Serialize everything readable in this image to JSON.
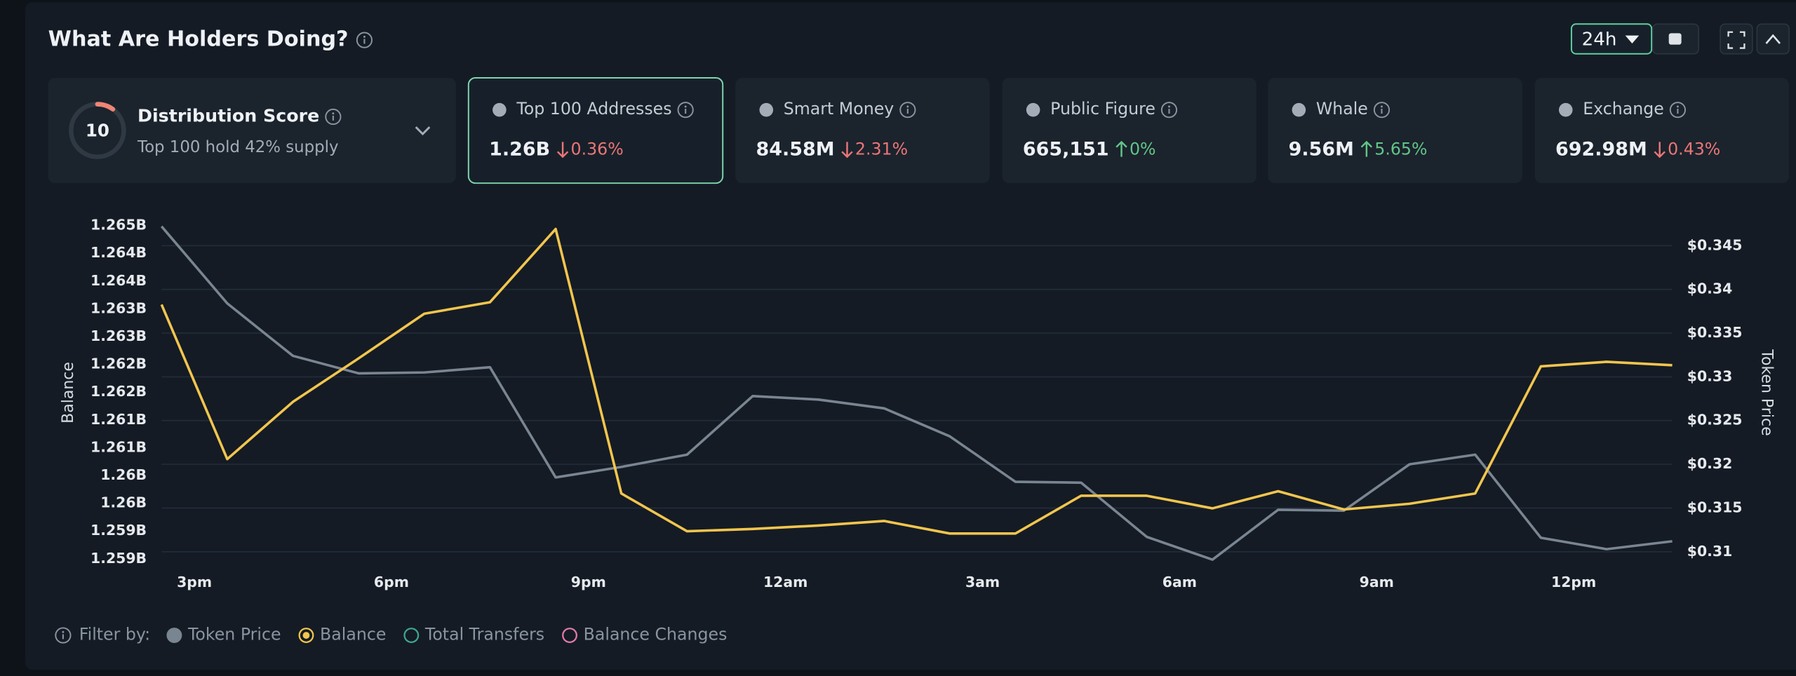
{
  "header": {
    "title": "What Are Holders Doing?",
    "range": "24h"
  },
  "distribution": {
    "score": 10,
    "title": "Distribution Score",
    "subtitle": "Top 100 hold 42% supply"
  },
  "cards": [
    {
      "name": "Top 100 Addresses",
      "value": "1.26B",
      "change": "0.36%",
      "direction": "down",
      "selected": true
    },
    {
      "name": "Smart Money",
      "value": "84.58M",
      "change": "2.31%",
      "direction": "down",
      "selected": false
    },
    {
      "name": "Public Figure",
      "value": "665,151",
      "change": "0%",
      "direction": "up",
      "selected": false
    },
    {
      "name": "Whale",
      "value": "9.56M",
      "change": "5.65%",
      "direction": "up",
      "selected": false
    },
    {
      "name": "Exchange",
      "value": "692.98M",
      "change": "0.43%",
      "direction": "down",
      "selected": false
    }
  ],
  "chart_data": {
    "type": "line",
    "y_label": "Balance",
    "y2_label": "Token Price",
    "x": [
      14.5,
      15.5,
      16.5,
      17.5,
      18.5,
      19.5,
      20.5,
      21.5,
      22.5,
      23.5,
      24.5,
      25.5,
      26.5,
      27.5,
      28.5,
      29.5,
      30.5,
      31.5,
      32.5,
      33.5,
      34.5,
      35.5,
      36.5,
      37.5
    ],
    "xlim": [
      14.5,
      37.5
    ],
    "xticks": [
      {
        "value": 15,
        "label": "3pm"
      },
      {
        "value": 18,
        "label": "6pm"
      },
      {
        "value": 21,
        "label": "9pm"
      },
      {
        "value": 24,
        "label": "12am"
      },
      {
        "value": 27,
        "label": "3am"
      },
      {
        "value": 30,
        "label": "6am"
      },
      {
        "value": 33,
        "label": "9am"
      },
      {
        "value": 36,
        "label": "12pm"
      }
    ],
    "ylim": [
      1258960000,
      1265000000
    ],
    "yticks": [
      {
        "value": 1265000000,
        "label": "1.265B"
      },
      {
        "value": 1264500000,
        "label": "1.264B"
      },
      {
        "value": 1264000000,
        "label": "1.264B"
      },
      {
        "value": 1263500000,
        "label": "1.263B"
      },
      {
        "value": 1263000000,
        "label": "1.263B"
      },
      {
        "value": 1262500000,
        "label": "1.262B"
      },
      {
        "value": 1262000000,
        "label": "1.262B"
      },
      {
        "value": 1261500000,
        "label": "1.261B"
      },
      {
        "value": 1261000000,
        "label": "1.261B"
      },
      {
        "value": 1260500000,
        "label": "1.26B"
      },
      {
        "value": 1260000000,
        "label": "1.26B"
      },
      {
        "value": 1259500000,
        "label": "1.259B"
      },
      {
        "value": 1259000000,
        "label": "1.259B"
      }
    ],
    "y2lim": [
      0.30895,
      0.3473
    ],
    "y2ticks": [
      {
        "value": 0.345,
        "label": "$0.345"
      },
      {
        "value": 0.34,
        "label": "$0.34"
      },
      {
        "value": 0.335,
        "label": "$0.335"
      },
      {
        "value": 0.33,
        "label": "$0.33"
      },
      {
        "value": 0.325,
        "label": "$0.325"
      },
      {
        "value": 0.32,
        "label": "$0.32"
      },
      {
        "value": 0.315,
        "label": "$0.315"
      },
      {
        "value": 0.31,
        "label": "$0.31"
      }
    ],
    "grid": true,
    "series": [
      {
        "name": "Token Price",
        "color": "#7a8592",
        "axis": "y2",
        "values": [
          0.3472,
          0.3384,
          0.3324,
          0.3304,
          0.3305,
          0.3311,
          0.3185,
          0.3197,
          0.3211,
          0.3278,
          0.3274,
          0.3264,
          0.3232,
          0.318,
          0.3179,
          0.3117,
          0.3091,
          0.3148,
          0.3147,
          0.32,
          0.3211,
          0.3116,
          0.3103,
          0.3112
        ]
      },
      {
        "name": "Balance",
        "color": "#f2c54e",
        "values": [
          1263577000,
          1260794000,
          1261825000,
          1262608000,
          1263412000,
          1263619000,
          1264938000,
          1260175000,
          1259495000,
          1259536000,
          1259598000,
          1259680000,
          1259454000,
          1259454000,
          1260134000,
          1260134000,
          1259907000,
          1260216000,
          1259887000,
          1259990000,
          1260175000,
          1262464000,
          1262546000,
          1262485000
        ]
      }
    ]
  },
  "filter": {
    "label": "Filter by:",
    "options": [
      {
        "name": "Total Transfers",
        "color": "#3fa58f"
      },
      {
        "name": "Balance Changes",
        "color": "#e07aa8"
      }
    ]
  }
}
